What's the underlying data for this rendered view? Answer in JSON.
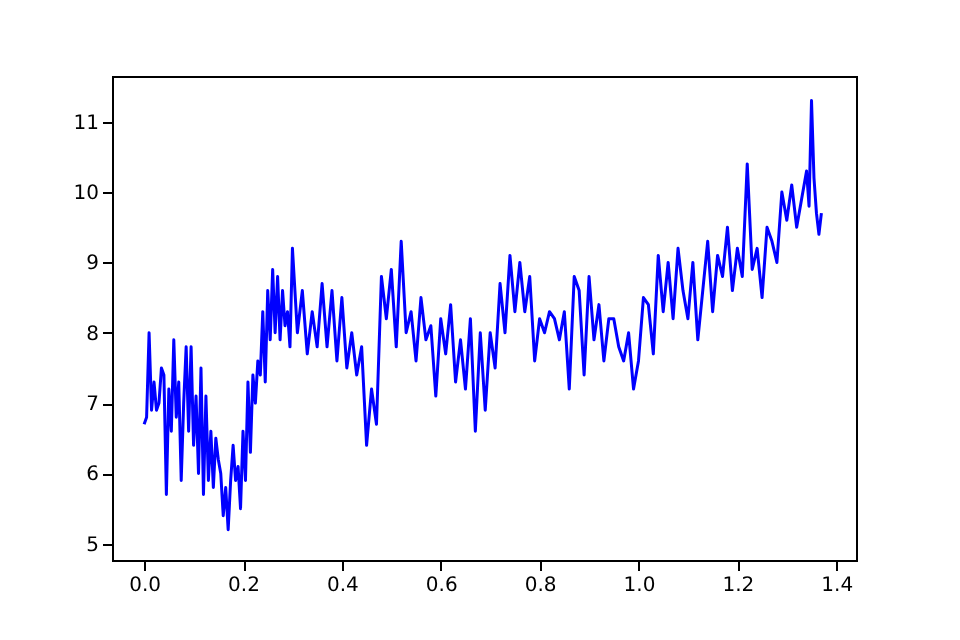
{
  "chart_data": {
    "type": "line",
    "x": [
      0,
      0.005,
      0.01,
      0.015,
      0.02,
      0.025,
      0.03,
      0.035,
      0.04,
      0.045,
      0.05,
      0.055,
      0.06,
      0.065,
      0.07,
      0.075,
      0.08,
      0.085,
      0.09,
      0.095,
      0.1,
      0.105,
      0.11,
      0.115,
      0.12,
      0.125,
      0.13,
      0.135,
      0.14,
      0.145,
      0.15,
      0.155,
      0.16,
      0.165,
      0.17,
      0.175,
      0.18,
      0.185,
      0.19,
      0.195,
      0.2,
      0.205,
      0.21,
      0.215,
      0.22,
      0.225,
      0.23,
      0.235,
      0.24,
      0.245,
      0.25,
      0.255,
      0.26,
      0.265,
      0.27,
      0.275,
      0.28,
      0.285,
      0.29,
      0.295,
      0.3,
      0.31,
      0.32,
      0.33,
      0.34,
      0.35,
      0.36,
      0.37,
      0.38,
      0.39,
      0.4,
      0.41,
      0.42,
      0.43,
      0.44,
      0.45,
      0.46,
      0.47,
      0.48,
      0.49,
      0.5,
      0.51,
      0.52,
      0.53,
      0.54,
      0.55,
      0.56,
      0.57,
      0.58,
      0.59,
      0.6,
      0.61,
      0.62,
      0.63,
      0.64,
      0.65,
      0.66,
      0.67,
      0.68,
      0.69,
      0.7,
      0.71,
      0.72,
      0.73,
      0.74,
      0.75,
      0.76,
      0.77,
      0.78,
      0.79,
      0.8,
      0.81,
      0.82,
      0.83,
      0.84,
      0.85,
      0.86,
      0.87,
      0.88,
      0.89,
      0.9,
      0.91,
      0.92,
      0.93,
      0.94,
      0.95,
      0.96,
      0.97,
      0.98,
      0.99,
      1.0,
      1.01,
      1.02,
      1.03,
      1.04,
      1.05,
      1.06,
      1.07,
      1.08,
      1.09,
      1.1,
      1.11,
      1.12,
      1.13,
      1.14,
      1.15,
      1.16,
      1.17,
      1.18,
      1.19,
      1.2,
      1.21,
      1.22,
      1.23,
      1.24,
      1.25,
      1.26,
      1.27,
      1.28,
      1.29,
      1.3,
      1.31,
      1.32,
      1.33,
      1.34,
      1.345,
      1.35,
      1.355,
      1.36,
      1.365,
      1.37
    ],
    "series": [
      {
        "color": "#0000ff",
        "values": [
          6.7,
          6.8,
          8.0,
          6.9,
          7.3,
          6.9,
          7.0,
          7.5,
          7.4,
          5.7,
          7.2,
          6.6,
          7.9,
          6.8,
          7.3,
          5.9,
          7.0,
          7.8,
          6.6,
          7.8,
          6.4,
          7.1,
          6.0,
          7.5,
          5.7,
          7.1,
          5.9,
          6.6,
          5.8,
          6.5,
          6.2,
          6.0,
          5.4,
          5.8,
          5.2,
          5.9,
          6.4,
          5.9,
          6.1,
          5.5,
          6.6,
          5.9,
          7.3,
          6.3,
          7.4,
          7.0,
          7.6,
          7.4,
          8.3,
          7.3,
          8.6,
          7.9,
          8.9,
          8.0,
          8.8,
          7.9,
          8.6,
          8.1,
          8.3,
          7.8,
          9.2,
          8.0,
          8.6,
          7.7,
          8.3,
          7.8,
          8.7,
          7.8,
          8.6,
          7.6,
          8.5,
          7.5,
          8.0,
          7.4,
          7.8,
          6.4,
          7.2,
          6.7,
          8.8,
          8.2,
          8.9,
          7.8,
          9.3,
          8.0,
          8.3,
          7.6,
          8.5,
          7.9,
          8.1,
          7.1,
          8.2,
          7.7,
          8.4,
          7.3,
          7.9,
          7.2,
          8.2,
          6.6,
          8.0,
          6.9,
          8.0,
          7.5,
          8.7,
          8.0,
          9.1,
          8.3,
          9.0,
          8.3,
          8.8,
          7.6,
          8.2,
          8.0,
          8.3,
          8.2,
          7.9,
          8.3,
          7.2,
          8.8,
          8.6,
          7.4,
          8.8,
          7.9,
          8.4,
          7.6,
          8.2,
          8.2,
          7.8,
          7.6,
          8.0,
          7.2,
          7.6,
          8.5,
          8.4,
          7.7,
          9.1,
          8.3,
          9.0,
          8.2,
          9.2,
          8.6,
          8.2,
          9.0,
          7.9,
          8.6,
          9.3,
          8.3,
          9.1,
          8.8,
          9.5,
          8.6,
          9.2,
          8.8,
          10.4,
          8.9,
          9.2,
          8.5,
          9.5,
          9.3,
          9.0,
          10.0,
          9.6,
          10.1,
          9.5,
          9.9,
          10.3,
          9.8,
          11.3,
          10.2,
          9.7,
          9.4,
          9.7
        ]
      }
    ],
    "xlim": [
      -0.065,
      1.44
    ],
    "ylim": [
      4.77,
      11.65
    ],
    "xticks": [
      {
        "value": 0,
        "label": "0.0"
      },
      {
        "value": 0.2,
        "label": "0.2"
      },
      {
        "value": 0.4,
        "label": "0.4"
      },
      {
        "value": 0.6,
        "label": "0.6"
      },
      {
        "value": 0.8,
        "label": "0.8"
      },
      {
        "value": 1.0,
        "label": "1.0"
      },
      {
        "value": 1.2,
        "label": "1.2"
      },
      {
        "value": 1.4,
        "label": "1.4"
      }
    ],
    "yticks": [
      5,
      6,
      7,
      8,
      9,
      10,
      11
    ],
    "grid": false
  }
}
